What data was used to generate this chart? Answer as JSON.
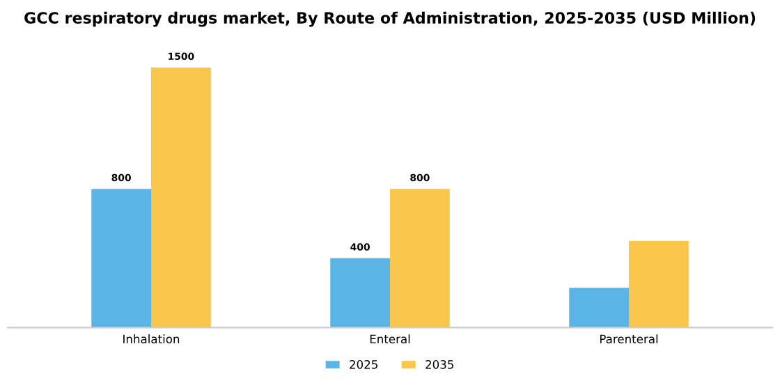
{
  "chart_data": {
    "type": "bar",
    "title": "GCC respiratory drugs market, By Route of Administration, 2025-2035 (USD Million)",
    "categories": [
      "Inhalation",
      "Enteral",
      "Parenteral"
    ],
    "series": [
      {
        "name": "2025",
        "color": "#5ab4e5",
        "values": [
          800,
          400,
          230
        ],
        "value_labels": [
          "800",
          "400",
          null
        ]
      },
      {
        "name": "2035",
        "color": "#f9c54b",
        "values": [
          1500,
          800,
          500
        ],
        "value_labels": [
          "1500",
          "800",
          null
        ]
      }
    ],
    "legend": "bottom",
    "grid": false,
    "tick_labels": "x"
  }
}
